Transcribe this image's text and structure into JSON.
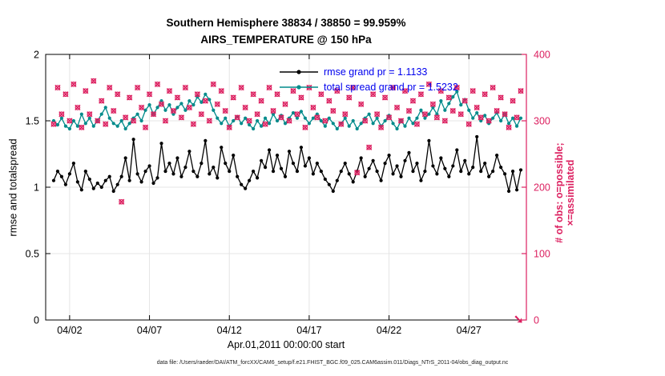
{
  "title": {
    "line1": "Southern Hemisphere 38834 / 38850 = 99.959%",
    "line2": "AIRS_TEMPERATURE @ 150 hPa"
  },
  "axes": {
    "ylabel_left": "rmse and totalspread",
    "ylabel_right": "# of obs: o=possible; ×=assimilated",
    "xlabel": "Apr.01,2011 00:00:00 start",
    "yticks_left": [
      "0",
      "0.5",
      "1",
      "1.5",
      "2"
    ],
    "yticks_left_values": [
      0,
      0.5,
      1,
      1.5,
      2
    ],
    "yticks_right": [
      "0",
      "100",
      "200",
      "300",
      "400"
    ],
    "yticks_right_values": [
      0,
      100,
      200,
      300,
      400
    ],
    "xtick_labels": [
      "04/02",
      "04/07",
      "04/12",
      "04/17",
      "04/22",
      "04/27"
    ],
    "xtick_days": [
      1,
      6,
      11,
      16,
      21,
      26
    ],
    "ylim_left": [
      0,
      2
    ],
    "ylim_right": [
      0,
      400
    ],
    "xlim_days": [
      -0.5,
      29.6
    ],
    "grid": true
  },
  "legend": {
    "position": "upper center",
    "items": [
      {
        "label": "rmse grand pr = 1.1133",
        "series": "rmse"
      },
      {
        "label": "total spread grand pr = 1.5232",
        "series": "totalspread"
      }
    ]
  },
  "caption": "data file: /Users/raeder/DAI/ATM_forcXX/CAM6_setup/f.e21.FHIST_BGC.f09_025.CAM6assim.011/Diags_NTrS_2011-04/obs_diag_output.nc",
  "colors": {
    "rmse": "#000000",
    "spread": "#008b8b",
    "obs": "#dc2060",
    "legend_text": "#0000ee",
    "grid": "#e4e4e4",
    "box": "#000000"
  },
  "chart_data": {
    "type": "line",
    "title": "Southern Hemisphere 38834 / 38850 = 99.959% — AIRS_TEMPERATURE @ 150 hPa",
    "x_start_day": 0,
    "x_step_days": 0.25,
    "x_epoch": "Apr.01,2011 00:00:00",
    "xlabel": "Apr.01,2011 00:00:00 start",
    "ylabel_left": "rmse and totalspread",
    "ylabel_right": "# of obs: o=possible; ×=assimilated",
    "ylim_left": [
      0,
      2
    ],
    "ylim_right": [
      0,
      400
    ],
    "series": [
      {
        "name": "rmse",
        "axis": "left",
        "grand_value": 1.1133,
        "values": [
          1.05,
          1.12,
          1.08,
          1.02,
          1.1,
          1.18,
          1.04,
          0.98,
          1.12,
          1.06,
          0.99,
          1.03,
          1.0,
          1.05,
          1.08,
          0.97,
          1.02,
          1.08,
          1.22,
          1.05,
          1.36,
          1.1,
          1.04,
          1.12,
          1.16,
          1.03,
          1.07,
          1.33,
          1.12,
          1.18,
          1.1,
          1.22,
          1.08,
          1.15,
          1.27,
          1.12,
          1.08,
          1.18,
          1.35,
          1.1,
          1.15,
          1.07,
          1.3,
          1.18,
          1.12,
          1.24,
          1.08,
          1.02,
          0.99,
          1.05,
          1.12,
          1.07,
          1.2,
          1.15,
          1.28,
          1.12,
          1.24,
          1.14,
          1.08,
          1.27,
          1.18,
          1.12,
          1.3,
          1.16,
          1.22,
          1.1,
          1.18,
          1.12,
          1.06,
          1.02,
          0.97,
          1.05,
          1.12,
          1.18,
          1.1,
          1.04,
          1.12,
          1.22,
          1.08,
          1.14,
          1.2,
          1.12,
          1.05,
          1.18,
          1.24,
          1.1,
          1.16,
          1.08,
          1.2,
          1.26,
          1.12,
          1.18,
          1.05,
          1.12,
          1.35,
          1.16,
          1.1,
          1.22,
          1.14,
          1.08,
          1.16,
          1.28,
          1.12,
          1.2,
          1.1,
          1.15,
          1.38,
          1.12,
          1.18,
          1.08,
          1.12,
          1.24,
          1.15,
          1.1,
          0.97,
          1.12,
          0.98,
          1.13
        ]
      },
      {
        "name": "total spread",
        "axis": "left",
        "grand_value": 1.5232,
        "values": [
          1.5,
          1.47,
          1.52,
          1.46,
          1.44,
          1.5,
          1.46,
          1.55,
          1.48,
          1.52,
          1.46,
          1.5,
          1.55,
          1.6,
          1.52,
          1.48,
          1.46,
          1.5,
          1.44,
          1.48,
          1.52,
          1.55,
          1.5,
          1.58,
          1.62,
          1.55,
          1.6,
          1.65,
          1.58,
          1.62,
          1.55,
          1.6,
          1.63,
          1.58,
          1.65,
          1.62,
          1.68,
          1.64,
          1.7,
          1.66,
          1.58,
          1.52,
          1.48,
          1.52,
          1.46,
          1.5,
          1.53,
          1.48,
          1.52,
          1.47,
          1.44,
          1.5,
          1.46,
          1.52,
          1.48,
          1.55,
          1.5,
          1.54,
          1.48,
          1.52,
          1.56,
          1.52,
          1.57,
          1.52,
          1.48,
          1.52,
          1.55,
          1.5,
          1.46,
          1.52,
          1.48,
          1.44,
          1.48,
          1.52,
          1.46,
          1.5,
          1.44,
          1.48,
          1.52,
          1.55,
          1.48,
          1.52,
          1.46,
          1.5,
          1.54,
          1.48,
          1.44,
          1.5,
          1.46,
          1.52,
          1.48,
          1.52,
          1.58,
          1.52,
          1.55,
          1.6,
          1.55,
          1.65,
          1.58,
          1.63,
          1.68,
          1.72,
          1.62,
          1.66,
          1.58,
          1.52,
          1.56,
          1.5,
          1.54,
          1.48,
          1.52,
          1.56,
          1.5,
          1.55,
          1.48,
          1.52,
          1.46,
          1.52
        ]
      },
      {
        "name": "# of obs (possible o and assimilated ×, overlapping)",
        "axis": "right",
        "possible_total": 38850,
        "assimilated_total": 38834,
        "values": [
          295,
          350,
          310,
          340,
          300,
          355,
          320,
          290,
          345,
          310,
          360,
          300,
          330,
          295,
          350,
          315,
          340,
          178,
          305,
          335,
          300,
          350,
          320,
          290,
          340,
          310,
          355,
          325,
          300,
          345,
          315,
          335,
          305,
          350,
          320,
          295,
          340,
          310,
          330,
          300,
          355,
          325,
          345,
          315,
          290,
          335,
          305,
          350,
          320,
          300,
          340,
          310,
          330,
          295,
          350,
          315,
          340,
          305,
          325,
          300,
          345,
          310,
          335,
          290,
          350,
          320,
          305,
          340,
          300,
          330,
          315,
          345,
          295,
          310,
          335,
          350,
          222,
          325,
          300,
          260,
          340,
          310,
          290,
          335,
          305,
          350,
          320,
          300,
          345,
          315,
          330,
          295,
          340,
          310,
          355,
          325,
          305,
          345,
          300,
          335,
          315,
          350,
          310,
          330,
          295,
          345,
          320,
          305,
          340,
          300,
          350,
          315,
          335,
          310,
          290,
          330,
          305,
          345
        ]
      }
    ]
  }
}
